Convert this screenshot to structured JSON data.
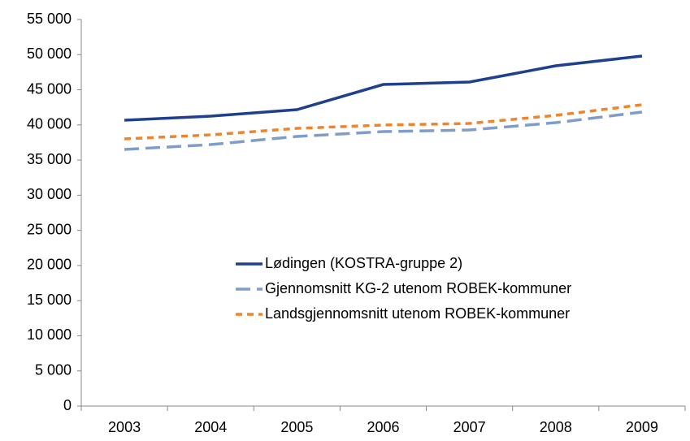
{
  "chart_data": {
    "type": "line",
    "categories": [
      "2003",
      "2004",
      "2005",
      "2006",
      "2007",
      "2008",
      "2009"
    ],
    "series": [
      {
        "name": "Lødingen (KOSTRA-gruppe 2)",
        "color": "#1f3f8f",
        "dash": "solid",
        "values": [
          40670,
          41250,
          42170,
          45750,
          46100,
          48410,
          49800
        ]
      },
      {
        "name": "Gjennomsnitt KG-2 utenom ROBEK-kommuner",
        "color": "#7f9ccb",
        "dash": "long",
        "values": [
          36510,
          37200,
          38360,
          39050,
          39280,
          40320,
          41830
        ]
      },
      {
        "name": "Landsgjennomsnitt utenom ROBEK-kommuner",
        "color": "#f0842c",
        "dash": "short",
        "values": [
          38010,
          38590,
          39510,
          39980,
          40210,
          41360,
          42870
        ]
      }
    ],
    "ylim": [
      0,
      55000
    ],
    "yticks": [
      {
        "value": 0,
        "label": "0"
      },
      {
        "value": 5000,
        "label": "5 000"
      },
      {
        "value": 10000,
        "label": "10 000"
      },
      {
        "value": 15000,
        "label": "15 000"
      },
      {
        "value": 20000,
        "label": "20 000"
      },
      {
        "value": 25000,
        "label": "25 000"
      },
      {
        "value": 30000,
        "label": "30 000"
      },
      {
        "value": 35000,
        "label": "35 000"
      },
      {
        "value": 40000,
        "label": "40 000"
      },
      {
        "value": 45000,
        "label": "45 000"
      },
      {
        "value": 50000,
        "label": "50 000"
      },
      {
        "value": 55000,
        "label": "55 000"
      }
    ],
    "grid": false,
    "legend_position": "center"
  }
}
